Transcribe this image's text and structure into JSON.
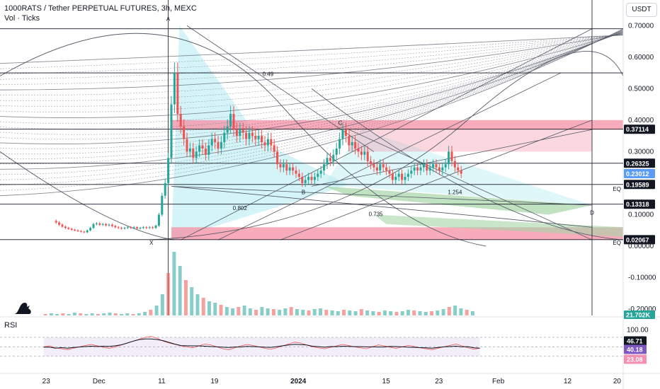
{
  "header": {
    "title": "1000RATS / Tether PERPETUAL FUTURES, 3h, MEXC",
    "vol_label": "Vol · Ticks",
    "rsi_label": "RSI",
    "unit": "USDT"
  },
  "colors": {
    "up": "#26a69a",
    "down": "#ef5350",
    "line": "#131722",
    "price_tag": "#5b9cf6",
    "vol_tag": "#26a69a",
    "rsi_tag": "#7e57c2",
    "rsi_tag_low": "#f48fb1",
    "zone_red": "#f48fa4",
    "zone_green": "#a5d6a7",
    "zone_cyan": "#b2ebf2"
  },
  "chart_data": {
    "type": "candlestick",
    "y_ticks": [
      "0.70000",
      "0.60000",
      "0.50000",
      "0.40000",
      "0.30000",
      "0.20000",
      "0.10000",
      "0.00000",
      "-0.10000",
      "-0.20000"
    ],
    "y_range": [
      -0.22,
      0.75
    ],
    "x_ticks": [
      {
        "label": "23",
        "bold": false
      },
      {
        "label": "Dec",
        "bold": false
      },
      {
        "label": "11",
        "bold": false
      },
      {
        "label": "19",
        "bold": false
      },
      {
        "label": "2024",
        "bold": true
      },
      {
        "label": "15",
        "bold": false
      },
      {
        "label": "23",
        "bold": false
      },
      {
        "label": "Feb",
        "bold": false
      },
      {
        "label": "12",
        "bold": false
      },
      {
        "label": "20",
        "bold": false
      }
    ],
    "price_tags": [
      {
        "label": "0.37114",
        "value": 0.37114,
        "style": "dark"
      },
      {
        "label": "0.26325",
        "value": 0.26325,
        "style": "dark"
      },
      {
        "label": "0.23012",
        "value": 0.23012,
        "style": "price"
      },
      {
        "label": "0.19589",
        "value": 0.19589,
        "style": "dark"
      },
      {
        "label": "0.13318",
        "value": 0.13318,
        "style": "dark"
      },
      {
        "label": "0.02067",
        "value": 0.02067,
        "style": "dark"
      }
    ],
    "volume_tag": "21.702K",
    "pattern_points": [
      "X",
      "A",
      "B",
      "C",
      "D"
    ],
    "ratios": [
      "0.49",
      "0.802",
      "0.735",
      "1.254"
    ],
    "eq_labels": [
      "EQ",
      "EQ"
    ],
    "price_path": [
      [
        0.085,
        0.08
      ],
      [
        0.09,
        0.075
      ],
      [
        0.095,
        0.068
      ],
      [
        0.1,
        0.062
      ],
      [
        0.105,
        0.058
      ],
      [
        0.11,
        0.055
      ],
      [
        0.115,
        0.052
      ],
      [
        0.12,
        0.05
      ],
      [
        0.125,
        0.048
      ],
      [
        0.13,
        0.046
      ],
      [
        0.135,
        0.044
      ],
      [
        0.14,
        0.05
      ],
      [
        0.145,
        0.058
      ],
      [
        0.15,
        0.07
      ],
      [
        0.155,
        0.072
      ],
      [
        0.16,
        0.068
      ],
      [
        0.165,
        0.07
      ],
      [
        0.17,
        0.066
      ],
      [
        0.175,
        0.068
      ],
      [
        0.18,
        0.064
      ],
      [
        0.185,
        0.06
      ],
      [
        0.19,
        0.058
      ],
      [
        0.195,
        0.056
      ],
      [
        0.2,
        0.058
      ],
      [
        0.205,
        0.06
      ],
      [
        0.21,
        0.058
      ],
      [
        0.215,
        0.06
      ],
      [
        0.22,
        0.056
      ],
      [
        0.225,
        0.058
      ],
      [
        0.23,
        0.06
      ],
      [
        0.235,
        0.058
      ],
      [
        0.24,
        0.06
      ],
      [
        0.245,
        0.058
      ],
      [
        0.25,
        0.065
      ],
      [
        0.255,
        0.1
      ],
      [
        0.26,
        0.16
      ],
      [
        0.265,
        0.2
      ],
      [
        0.27,
        0.28
      ],
      [
        0.275,
        0.45
      ],
      [
        0.28,
        0.55
      ],
      [
        0.285,
        0.42
      ],
      [
        0.29,
        0.38
      ],
      [
        0.295,
        0.34
      ],
      [
        0.3,
        0.3
      ],
      [
        0.305,
        0.31
      ],
      [
        0.31,
        0.28
      ],
      [
        0.315,
        0.3
      ],
      [
        0.32,
        0.32
      ],
      [
        0.325,
        0.31
      ],
      [
        0.33,
        0.29
      ],
      [
        0.335,
        0.32
      ],
      [
        0.34,
        0.34
      ],
      [
        0.345,
        0.33
      ],
      [
        0.35,
        0.31
      ],
      [
        0.355,
        0.33
      ],
      [
        0.36,
        0.36
      ],
      [
        0.365,
        0.38
      ],
      [
        0.37,
        0.42
      ],
      [
        0.375,
        0.37
      ],
      [
        0.38,
        0.35
      ],
      [
        0.385,
        0.37
      ],
      [
        0.39,
        0.36
      ],
      [
        0.395,
        0.34
      ],
      [
        0.4,
        0.36
      ],
      [
        0.405,
        0.35
      ],
      [
        0.41,
        0.34
      ],
      [
        0.415,
        0.35
      ],
      [
        0.42,
        0.33
      ],
      [
        0.425,
        0.32
      ],
      [
        0.43,
        0.34
      ],
      [
        0.435,
        0.32
      ],
      [
        0.44,
        0.3
      ],
      [
        0.445,
        0.26
      ],
      [
        0.45,
        0.25
      ],
      [
        0.455,
        0.26
      ],
      [
        0.46,
        0.24
      ],
      [
        0.465,
        0.25
      ],
      [
        0.47,
        0.24
      ],
      [
        0.475,
        0.23
      ],
      [
        0.48,
        0.22
      ],
      [
        0.485,
        0.2
      ],
      [
        0.49,
        0.21
      ],
      [
        0.495,
        0.22
      ],
      [
        0.5,
        0.21
      ],
      [
        0.505,
        0.22
      ],
      [
        0.51,
        0.23
      ],
      [
        0.515,
        0.24
      ],
      [
        0.52,
        0.26
      ],
      [
        0.525,
        0.28
      ],
      [
        0.53,
        0.27
      ],
      [
        0.535,
        0.29
      ],
      [
        0.54,
        0.31
      ],
      [
        0.545,
        0.34
      ],
      [
        0.55,
        0.37
      ],
      [
        0.555,
        0.35
      ],
      [
        0.56,
        0.32
      ],
      [
        0.565,
        0.33
      ],
      [
        0.57,
        0.31
      ],
      [
        0.575,
        0.3
      ],
      [
        0.58,
        0.29
      ],
      [
        0.585,
        0.3
      ],
      [
        0.59,
        0.27
      ],
      [
        0.595,
        0.26
      ],
      [
        0.6,
        0.25
      ],
      [
        0.605,
        0.24
      ],
      [
        0.61,
        0.26
      ],
      [
        0.615,
        0.25
      ],
      [
        0.62,
        0.24
      ],
      [
        0.625,
        0.23
      ],
      [
        0.63,
        0.21
      ],
      [
        0.635,
        0.22
      ],
      [
        0.64,
        0.23
      ],
      [
        0.645,
        0.21
      ],
      [
        0.65,
        0.22
      ],
      [
        0.655,
        0.23
      ],
      [
        0.66,
        0.24
      ],
      [
        0.665,
        0.25
      ],
      [
        0.67,
        0.24
      ],
      [
        0.675,
        0.25
      ],
      [
        0.68,
        0.26
      ],
      [
        0.685,
        0.24
      ],
      [
        0.69,
        0.25
      ],
      [
        0.695,
        0.26
      ],
      [
        0.7,
        0.25
      ],
      [
        0.705,
        0.24
      ],
      [
        0.71,
        0.25
      ],
      [
        0.715,
        0.26
      ],
      [
        0.72,
        0.3
      ],
      [
        0.725,
        0.27
      ],
      [
        0.73,
        0.25
      ],
      [
        0.735,
        0.24
      ],
      [
        0.74,
        0.23
      ]
    ],
    "rsi": {
      "levels": [
        "100.00",
        "46.71",
        "40.18",
        "23.08"
      ],
      "values": [
        50,
        52,
        48,
        46,
        44,
        47,
        50,
        53,
        55,
        52,
        49,
        47,
        50,
        54,
        58,
        62,
        66,
        70,
        72,
        68,
        62,
        58,
        55,
        52,
        50,
        48,
        52,
        56,
        54,
        50,
        46,
        44,
        48,
        52,
        55,
        53,
        50,
        47,
        45,
        48,
        52,
        56,
        60,
        58,
        54,
        50,
        48,
        46,
        49,
        52,
        55,
        53,
        50,
        48,
        46,
        50,
        54,
        52,
        49,
        47,
        50,
        53,
        51,
        48,
        46,
        44,
        47,
        50,
        53,
        56,
        52,
        48,
        45,
        47
      ]
    },
    "volume": [
      2,
      3,
      2,
      3,
      2,
      4,
      3,
      2,
      3,
      2,
      3,
      4,
      3,
      2,
      3,
      2,
      3,
      5,
      8,
      14,
      30,
      60,
      90,
      70,
      50,
      40,
      30,
      25,
      20,
      18,
      15,
      12,
      10,
      12,
      14,
      10,
      8,
      12,
      10,
      9,
      8,
      10,
      12,
      9,
      8,
      7,
      9,
      10,
      8,
      7,
      6,
      8,
      7,
      6,
      9,
      7,
      6,
      5,
      7,
      6,
      5,
      6,
      8,
      7,
      6,
      5,
      6,
      7,
      9,
      12,
      14,
      10,
      8,
      6
    ]
  }
}
